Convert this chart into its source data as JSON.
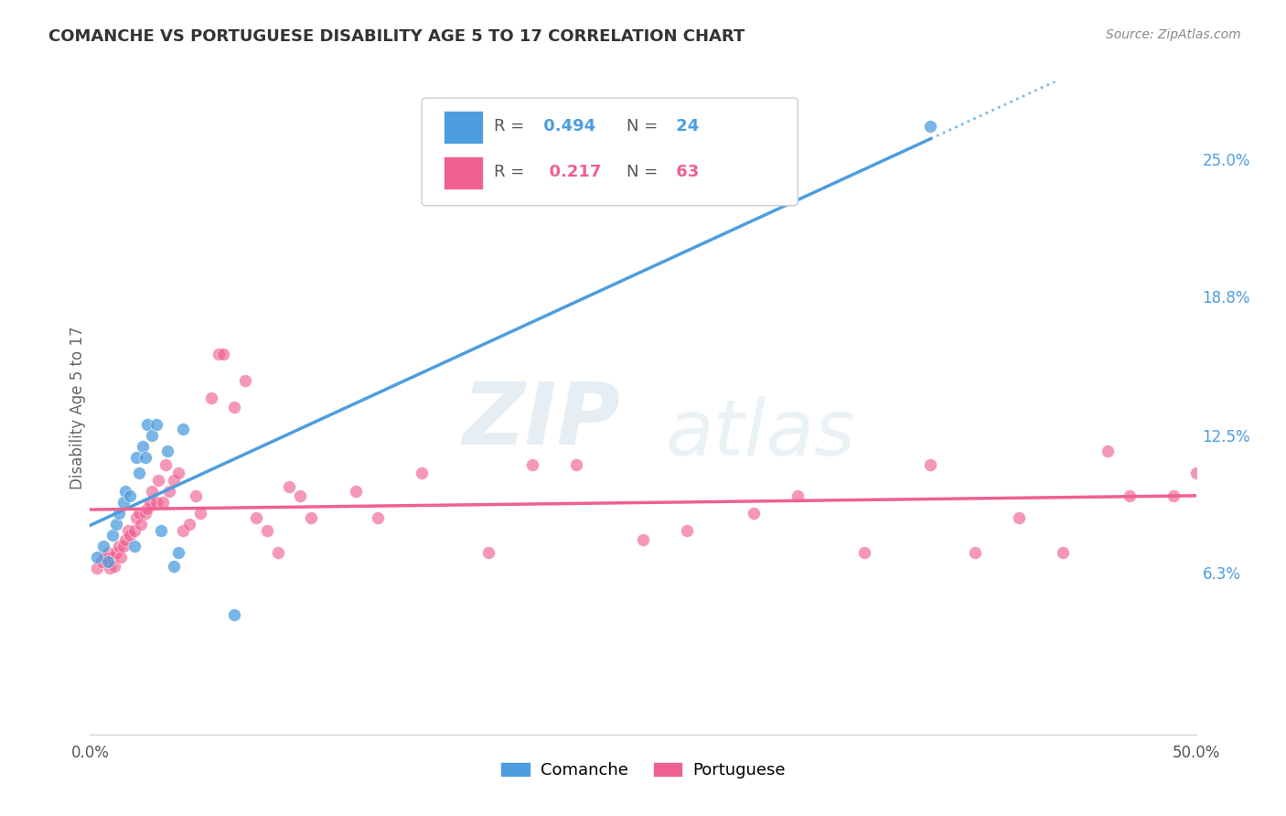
{
  "title": "COMANCHE VS PORTUGUESE DISABILITY AGE 5 TO 17 CORRELATION CHART",
  "source": "Source: ZipAtlas.com",
  "ylabel": "Disability Age 5 to 17",
  "right_yticks": [
    "6.3%",
    "12.5%",
    "18.8%",
    "25.0%"
  ],
  "right_ytick_vals": [
    0.063,
    0.125,
    0.188,
    0.25
  ],
  "comanche_color": "#4d9de0",
  "portuguese_color": "#f06090",
  "comanche_R": 0.494,
  "comanche_N": 24,
  "portuguese_R": 0.217,
  "portuguese_N": 63,
  "xlim": [
    0.0,
    0.5
  ],
  "ylim": [
    -0.01,
    0.285
  ],
  "comanche_x": [
    0.003,
    0.006,
    0.008,
    0.01,
    0.012,
    0.013,
    0.015,
    0.016,
    0.018,
    0.02,
    0.021,
    0.022,
    0.024,
    0.025,
    0.026,
    0.028,
    0.03,
    0.032,
    0.035,
    0.038,
    0.04,
    0.042,
    0.065,
    0.38
  ],
  "comanche_y": [
    0.07,
    0.075,
    0.068,
    0.08,
    0.085,
    0.09,
    0.095,
    0.1,
    0.098,
    0.075,
    0.115,
    0.108,
    0.12,
    0.115,
    0.13,
    0.125,
    0.13,
    0.082,
    0.118,
    0.066,
    0.072,
    0.128,
    0.044,
    0.265
  ],
  "portuguese_x": [
    0.003,
    0.005,
    0.007,
    0.008,
    0.009,
    0.01,
    0.011,
    0.012,
    0.013,
    0.014,
    0.015,
    0.016,
    0.017,
    0.018,
    0.02,
    0.021,
    0.022,
    0.023,
    0.025,
    0.026,
    0.027,
    0.028,
    0.03,
    0.031,
    0.033,
    0.034,
    0.036,
    0.038,
    0.04,
    0.042,
    0.045,
    0.048,
    0.05,
    0.055,
    0.058,
    0.06,
    0.065,
    0.07,
    0.075,
    0.08,
    0.085,
    0.09,
    0.095,
    0.1,
    0.12,
    0.13,
    0.15,
    0.18,
    0.2,
    0.22,
    0.25,
    0.27,
    0.3,
    0.32,
    0.35,
    0.38,
    0.4,
    0.42,
    0.44,
    0.46,
    0.47,
    0.49,
    0.5
  ],
  "portuguese_y": [
    0.065,
    0.068,
    0.07,
    0.072,
    0.065,
    0.07,
    0.066,
    0.072,
    0.075,
    0.07,
    0.075,
    0.078,
    0.082,
    0.08,
    0.082,
    0.088,
    0.09,
    0.085,
    0.09,
    0.092,
    0.095,
    0.1,
    0.095,
    0.105,
    0.095,
    0.112,
    0.1,
    0.105,
    0.108,
    0.082,
    0.085,
    0.098,
    0.09,
    0.142,
    0.162,
    0.162,
    0.138,
    0.15,
    0.088,
    0.082,
    0.072,
    0.102,
    0.098,
    0.088,
    0.1,
    0.088,
    0.108,
    0.072,
    0.112,
    0.112,
    0.078,
    0.082,
    0.09,
    0.098,
    0.072,
    0.112,
    0.072,
    0.088,
    0.072,
    0.118,
    0.098,
    0.098,
    0.108
  ],
  "watermark_zip": "ZIP",
  "watermark_atlas": "atlas",
  "background_color": "#ffffff",
  "grid_color": "#e0e0e0"
}
